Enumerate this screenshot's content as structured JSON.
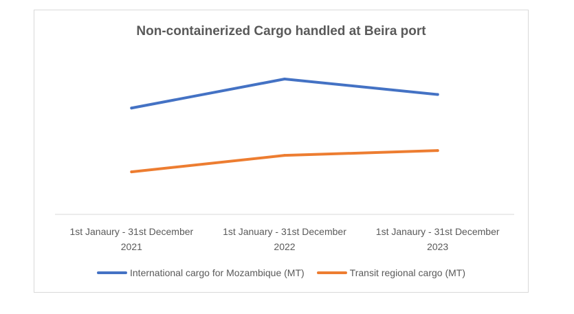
{
  "chart_data": {
    "type": "line",
    "title": "Non-containerized Cargo handled at Beira port",
    "categories": [
      [
        "1st Janaury - 31st December",
        "2021"
      ],
      [
        "1st January - 31st December",
        "2022"
      ],
      [
        "1st Janaury - 31st December",
        "2023"
      ]
    ],
    "series": [
      {
        "name": "International cargo for Mozambique (MT)",
        "color": "#4472c4",
        "values": [
          870,
          1020,
          940
        ]
      },
      {
        "name": "Transit regional cargo (MT)",
        "color": "#ed7d31",
        "values": [
          540,
          625,
          650
        ]
      }
    ],
    "ylim": [
      320,
      1180
    ],
    "grid": false,
    "legend_position": "bottom"
  }
}
